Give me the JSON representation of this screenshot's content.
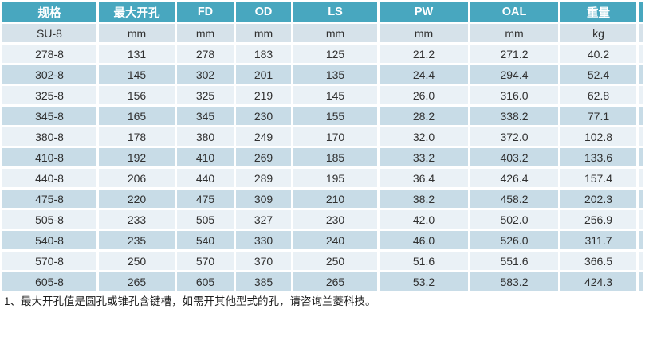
{
  "colors": {
    "header_bg": "#48A7BF",
    "header_text": "#FFFFFF",
    "row_light": "#EAF1F6",
    "row_dark": "#C8DCE7",
    "units_bg": "#D6E2EA",
    "cell_text": "#303030",
    "note_text": "#1C1C1C"
  },
  "table": {
    "headers": [
      "规格",
      "最大开孔",
      "FD",
      "OD",
      "LS",
      "PW",
      "OAL",
      "重量"
    ],
    "units_row": [
      "SU-8",
      "mm",
      "mm",
      "mm",
      "mm",
      "mm",
      "mm",
      "kg"
    ],
    "rows": [
      [
        "278-8",
        "131",
        "278",
        "183",
        "125",
        "21.2",
        "271.2",
        "40.2"
      ],
      [
        "302-8",
        "145",
        "302",
        "201",
        "135",
        "24.4",
        "294.4",
        "52.4"
      ],
      [
        "325-8",
        "156",
        "325",
        "219",
        "145",
        "26.0",
        "316.0",
        "62.8"
      ],
      [
        "345-8",
        "165",
        "345",
        "230",
        "155",
        "28.2",
        "338.2",
        "77.1"
      ],
      [
        "380-8",
        "178",
        "380",
        "249",
        "170",
        "32.0",
        "372.0",
        "102.8"
      ],
      [
        "410-8",
        "192",
        "410",
        "269",
        "185",
        "33.2",
        "403.2",
        "133.6"
      ],
      [
        "440-8",
        "206",
        "440",
        "289",
        "195",
        "36.4",
        "426.4",
        "157.4"
      ],
      [
        "475-8",
        "220",
        "475",
        "309",
        "210",
        "38.2",
        "458.2",
        "202.3"
      ],
      [
        "505-8",
        "233",
        "505",
        "327",
        "230",
        "42.0",
        "502.0",
        "256.9"
      ],
      [
        "540-8",
        "235",
        "540",
        "330",
        "240",
        "46.0",
        "526.0",
        "311.7"
      ],
      [
        "570-8",
        "250",
        "570",
        "370",
        "250",
        "51.6",
        "551.6",
        "366.5"
      ],
      [
        "605-8",
        "265",
        "605",
        "385",
        "265",
        "53.2",
        "583.2",
        "424.3"
      ]
    ]
  },
  "footnote": "1、最大开孔值是圆孔或锥孔含键槽，如需开其他型式的孔，请咨询兰菱科技。"
}
